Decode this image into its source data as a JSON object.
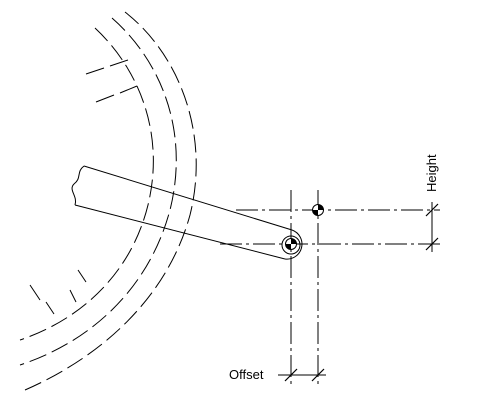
{
  "labels": {
    "offset": "Offset",
    "height": "Height"
  },
  "colors": {
    "line": "#000000",
    "background": "#ffffff"
  },
  "icons": {
    "pivot_marker": "center-of-gravity-symbol",
    "target_marker": "center-of-gravity-symbol"
  }
}
